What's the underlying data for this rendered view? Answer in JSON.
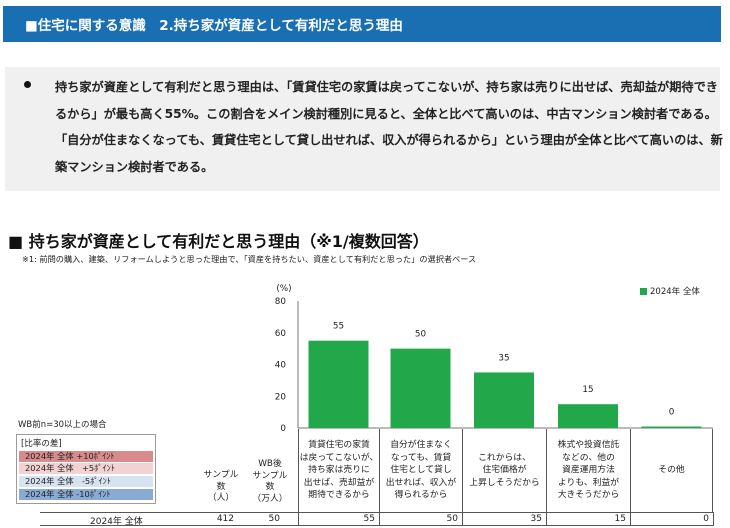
{
  "header": {
    "title": "■住宅に関する意識　2.持ち家が資産として有利だと思う理由"
  },
  "summary": {
    "bullet": "●",
    "text": "持ち家が資産として有利だと思う理由は、「賃貸住宅の家賃は戻ってこないが、持ち家は売りに出せば、売却益が期待できるから」が最も高く55%。この割合をメイン検討種別に見ると、全体と比べて高いのは、中古マンション検討者である。「自分が住まなくなっても、賃貸住宅として貸し出せれば、収入が得られるから」という理由が全体と比べて高いのは、新築マンション検討者である。"
  },
  "section": {
    "title": "■ 持ち家が資産として有利だと思う理由（※1/複数回答）",
    "note": "※1: 前問の購入、建築、リフォームしようと思った理由で、「資産を持ちたい、資産として有利だと思った」の選択者ベース"
  },
  "legend": {
    "label": "2024年 全体",
    "color": "#22a84a"
  },
  "ratio_legend": {
    "wb_note": "WB前n=30以上の場合",
    "title": "[比率の差]",
    "rows": [
      {
        "label": "2024年 全体 +10ﾎﾟｲﾝﾄ",
        "color": "#d98a8a"
      },
      {
        "label": "2024年 全体　+5ﾎﾟｲﾝﾄ",
        "color": "#f2d2d2"
      },
      {
        "label": "2024年 全体　-5ﾎﾟｲﾝﾄ",
        "color": "#d7e3f1"
      },
      {
        "label": "2024年 全体 -10ﾎﾟｲﾝﾄ",
        "color": "#8aaad6"
      }
    ]
  },
  "table": {
    "sample_header": "サンプル\n数\n（人）",
    "wb_header": "WB後\nサンプル\n数\n（万人）",
    "row": {
      "label": "2024年 全体",
      "sample": "412",
      "wb_sample": "50"
    }
  },
  "chart_data": {
    "type": "bar",
    "unit_label": "(%)",
    "ylim": [
      0,
      80
    ],
    "yticks": [
      0,
      20,
      40,
      60,
      80
    ],
    "categories": [
      "賃貸住宅の家賃\nは戻ってこないが、\n持ち家は売りに\n出せば、売却益が\n期待できるから",
      "自分が住まなく\nなっても、賃貸\n住宅として貸し\n出せれば、収入が\n得られるから",
      "これからは、\n住宅価格が\n上昇しそうだから",
      "株式や投資信託\nなどの、他の\n資産運用方法\nよりも、利益が\n大きそうだから",
      "その他"
    ],
    "series": [
      {
        "name": "2024年 全体",
        "values": [
          55,
          50,
          35,
          15,
          0
        ]
      }
    ],
    "legend": "top-right"
  }
}
